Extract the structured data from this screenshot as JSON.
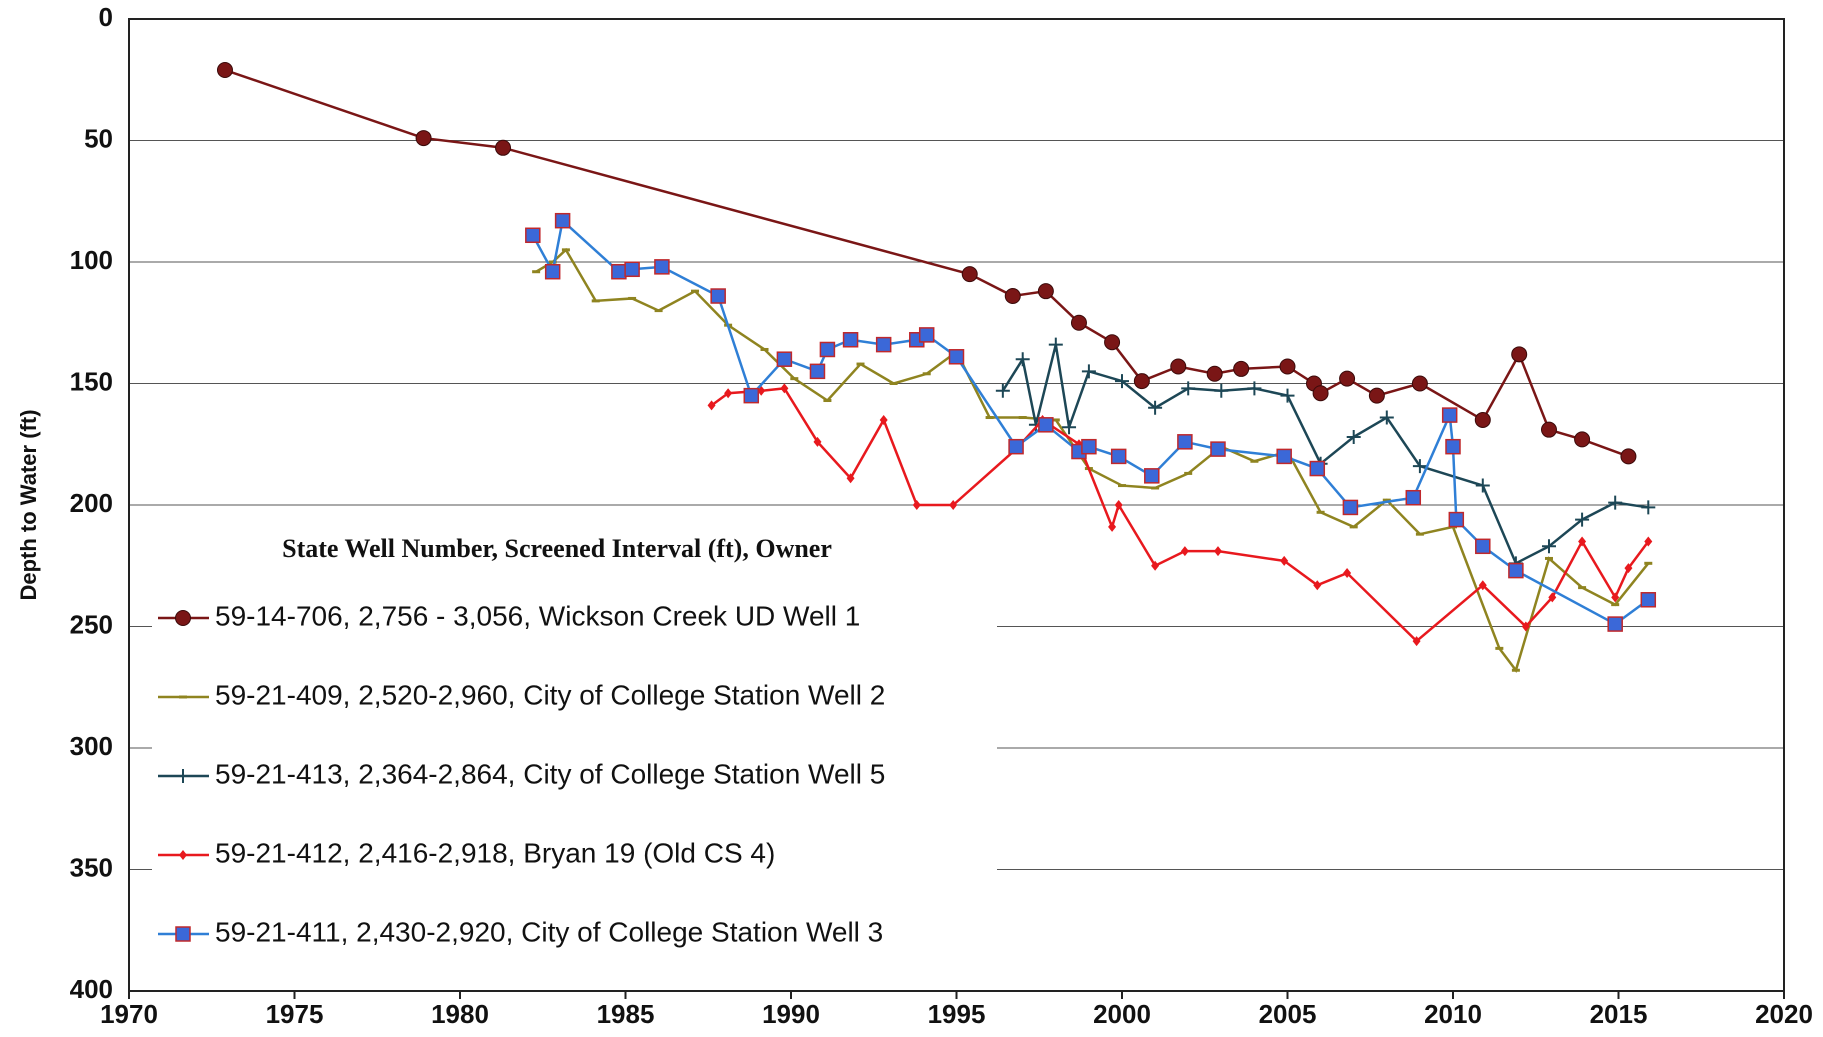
{
  "chart_data": {
    "type": "line",
    "ylabel": "Depth to Water (ft)",
    "legend_title": "State Well Number, Screened Interval (ft), Owner",
    "legend": "lower left",
    "grid": true,
    "y_inverted": true,
    "xlim": [
      1970,
      2020
    ],
    "xticks": [
      1970,
      1975,
      1980,
      1985,
      1990,
      1995,
      2000,
      2005,
      2010,
      2015,
      2020
    ],
    "ylim": [
      0,
      400
    ],
    "yticks": [
      0,
      50,
      100,
      150,
      200,
      250,
      300,
      350,
      400
    ],
    "series": [
      {
        "name": "59-14-706, 2,756 - 3,056, Wickson Creek UD Well 1",
        "color": "#7a1616",
        "marker": "circle",
        "x": [
          1972.9,
          1978.9,
          1981.3,
          1995.4,
          1996.7,
          1997.7,
          1998.7,
          1999.7,
          2000.6,
          2001.7,
          2002.8,
          2003.6,
          2005.0,
          2005.8,
          2006.0,
          2006.8,
          2007.7,
          2009.0,
          2010.9,
          2012.0,
          2012.9,
          2013.9,
          2015.3
        ],
        "values": [
          21,
          49,
          53,
          105,
          114,
          112,
          125,
          133,
          149,
          143,
          146,
          144,
          143,
          150,
          154,
          148,
          155,
          150,
          165,
          138,
          169,
          173,
          180
        ]
      },
      {
        "name": "59-21-409, 2,520-2,960, City of College Station Well 2",
        "color": "#8f8420",
        "marker": "dash",
        "x": [
          1982.3,
          1982.8,
          1983.2,
          1984.1,
          1985.2,
          1986.0,
          1987.1,
          1988.1,
          1989.2,
          1990.1,
          1991.1,
          1992.1,
          1993.1,
          1994.1,
          1995.0,
          1996.0,
          1997.0,
          1998.0,
          1999.0,
          2000.0,
          2001.0,
          2002.0,
          2003.0,
          2004.0,
          2005.0,
          2006.0,
          2007.0,
          2008.0,
          2009.0,
          2010.0,
          2011.4,
          2011.9,
          2012.9,
          2013.9,
          2014.9,
          2015.9
        ],
        "values": [
          104,
          100,
          95,
          116,
          115,
          120,
          112,
          126,
          136,
          148,
          157,
          142,
          150,
          146,
          137,
          164,
          164,
          165,
          185,
          192,
          193,
          187,
          176,
          182,
          178,
          203,
          209,
          198,
          212,
          209,
          259,
          268,
          222,
          234,
          241,
          224
        ]
      },
      {
        "name": "59-21-413, 2,364-2,864, City of College Station Well 5",
        "color": "#1d4756",
        "marker": "plus",
        "x": [
          1996.4,
          1997.0,
          1997.4,
          1998.0,
          1998.4,
          1999.0,
          2000.0,
          2001.0,
          2002.0,
          2003.0,
          2004.0,
          2005.0,
          2006.0,
          2007.0,
          2008.0,
          2009.0,
          2010.9,
          2011.9,
          2012.9,
          2013.9,
          2014.9,
          2015.9
        ],
        "values": [
          153,
          140,
          167,
          134,
          168,
          145,
          149,
          160,
          152,
          153,
          152,
          155,
          183,
          172,
          164,
          184,
          192,
          224,
          217,
          206,
          199,
          201
        ]
      },
      {
        "name": "59-21-412, 2,416-2,918, Bryan 19 (Old CS 4)",
        "color": "#e8191e",
        "marker": "diamond",
        "x": [
          1987.6,
          1988.1,
          1989.1,
          1989.8,
          1990.8,
          1991.8,
          1992.8,
          1993.8,
          1994.9,
          1996.8,
          1997.6,
          1998.7,
          1999.7,
          1999.9,
          2001.0,
          2001.9,
          2002.9,
          2004.9,
          2005.9,
          2006.8,
          2008.9,
          2010.9,
          2012.2,
          2013.0,
          2013.9,
          2014.9,
          2015.3,
          2015.9
        ],
        "values": [
          159,
          154,
          153,
          152,
          174,
          189,
          165,
          200,
          200,
          177,
          165,
          175,
          209,
          200,
          225,
          219,
          219,
          223,
          233,
          228,
          256,
          233,
          250,
          238,
          215,
          238,
          226,
          215
        ]
      },
      {
        "name": "59-21-411, 2,430-2,920, City of College Station Well 3",
        "color": "#2f7fd6",
        "marker": "square",
        "x": [
          1982.2,
          1982.8,
          1983.1,
          1984.8,
          1985.2,
          1986.1,
          1987.8,
          1988.8,
          1989.8,
          1990.8,
          1991.1,
          1991.8,
          1992.8,
          1993.8,
          1994.1,
          1995.0,
          1996.8,
          1997.7,
          1998.7,
          1999.0,
          1999.9,
          2000.9,
          2001.9,
          2002.9,
          2004.9,
          2005.9,
          2006.9,
          2008.8,
          2009.9,
          2010.0,
          2010.1,
          2010.9,
          2011.9,
          2014.9,
          2015.9
        ],
        "values": [
          89,
          104,
          83,
          104,
          103,
          102,
          114,
          155,
          140,
          145,
          136,
          132,
          134,
          132,
          130,
          139,
          176,
          167,
          178,
          176,
          180,
          188,
          174,
          177,
          180,
          185,
          201,
          197,
          163,
          176,
          206,
          217,
          227,
          249,
          239
        ]
      }
    ]
  }
}
